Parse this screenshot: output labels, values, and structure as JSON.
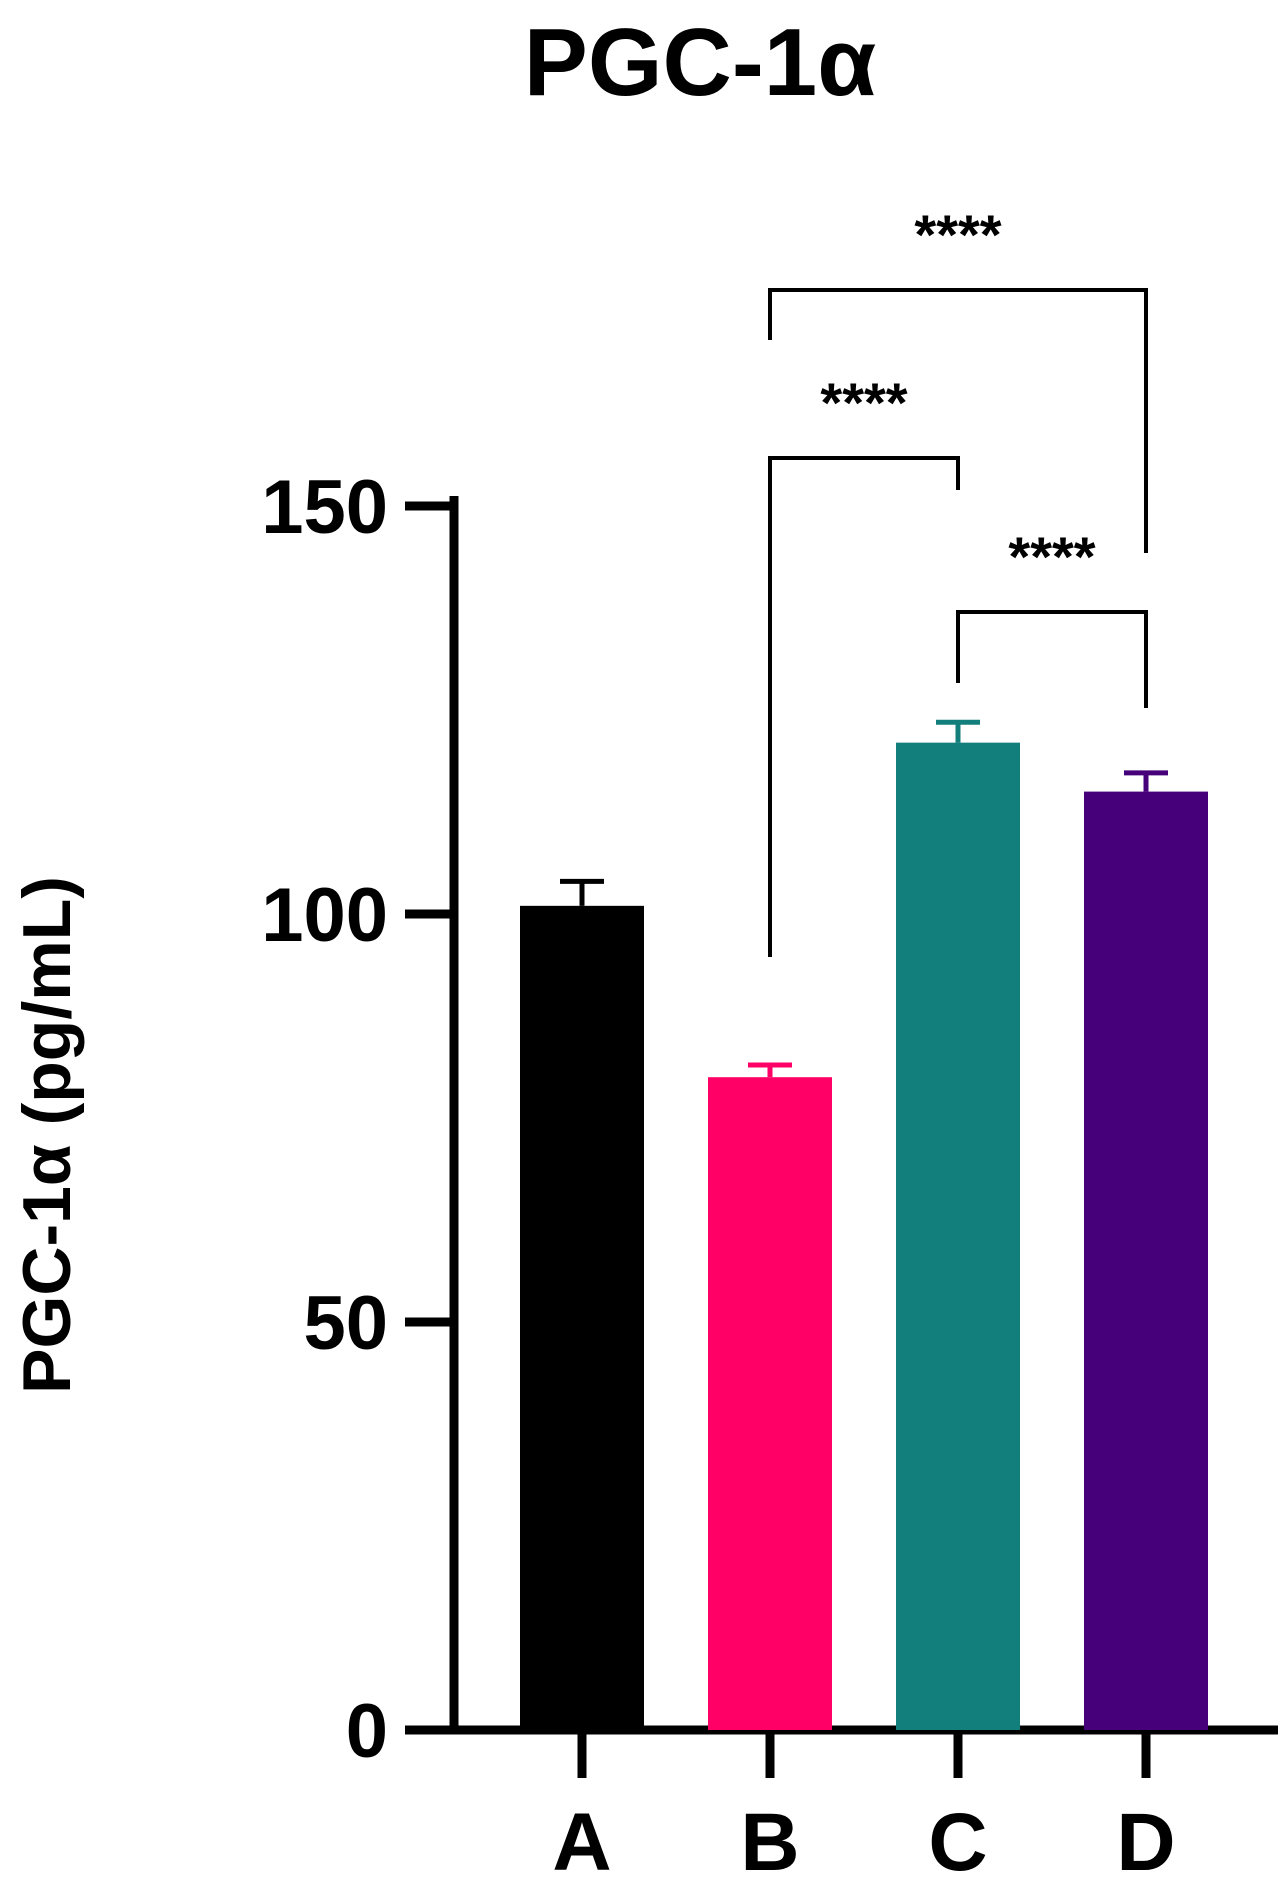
{
  "chart_data": {
    "type": "bar",
    "title": "PGC-1α",
    "ylabel": "PGC-1α (pg/mL)",
    "xlabel": "",
    "categories": [
      "A",
      "B",
      "C",
      "D"
    ],
    "values": [
      101,
      80,
      121,
      115
    ],
    "errors": [
      3,
      1.5,
      2.5,
      2.3
    ],
    "colors": [
      "#000000",
      "#ff0066",
      "#137f7c",
      "#46007a"
    ],
    "ylim": [
      0,
      150
    ],
    "yticks": [
      0,
      50,
      100,
      150
    ],
    "grid": false,
    "annotations": [
      {
        "from": "B",
        "to": "D",
        "label": "****"
      },
      {
        "from": "B",
        "to": "C",
        "label": "****"
      },
      {
        "from": "C",
        "to": "D",
        "label": "****"
      }
    ]
  }
}
